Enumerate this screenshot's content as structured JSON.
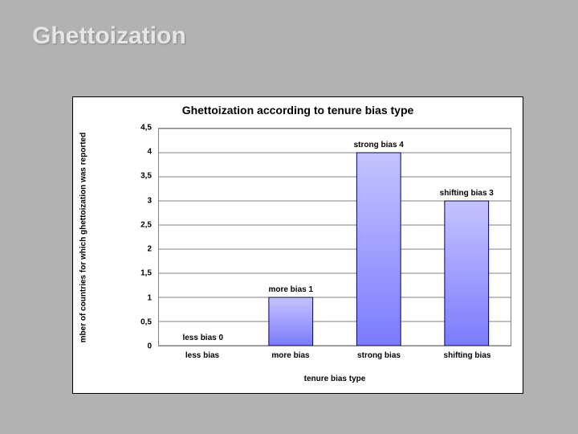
{
  "slide": {
    "title": "Ghettoization",
    "bg_color": "#b2b2b2",
    "title_color": "#e6e6e6"
  },
  "chart": {
    "type": "bar",
    "title": "Ghettoization according to tenure bias type",
    "title_fontsize": 14,
    "categories": [
      "less bias",
      "more bias",
      "strong bias",
      "shifting bias"
    ],
    "values": [
      0,
      1,
      4,
      3
    ],
    "data_labels": [
      "less bias  0",
      "more bias  1",
      "strong bias  4",
      "shifting bias  3"
    ],
    "bar_color_top": "#c4c4ff",
    "bar_color_bottom": "#7b7bff",
    "bar_border": "#000066",
    "bar_width_ratio": 0.5,
    "xlabel": "tenure bias type",
    "ylabel": "mber of countries for which ghettoization was reported",
    "ylim": [
      0,
      4.5
    ],
    "ytick_step": 0.5,
    "ytick_labels": [
      "0",
      "0,5",
      "1",
      "1,5",
      "2",
      "2,5",
      "3",
      "3,5",
      "4",
      "4,5"
    ],
    "grid_color": "#000000",
    "background_color": "#ffffff",
    "frame_border": "#000000",
    "plot_border": "#7f7f7f",
    "label_fontsize": 10
  }
}
